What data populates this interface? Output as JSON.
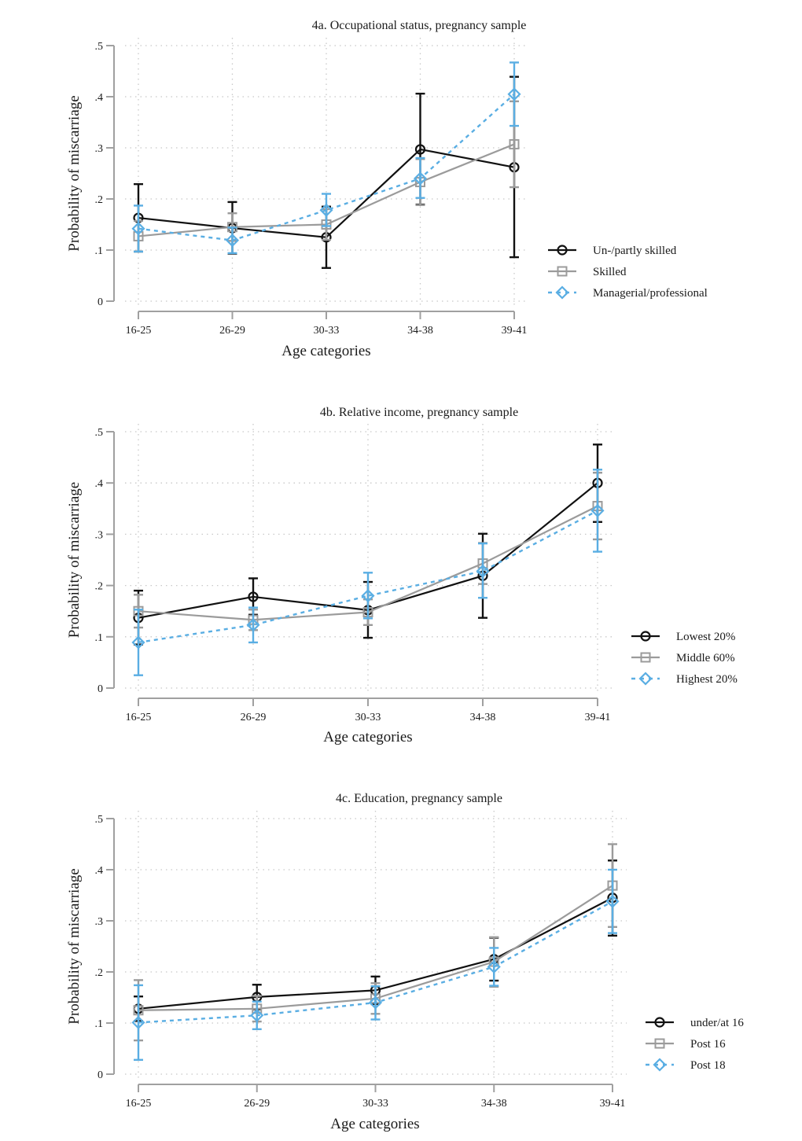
{
  "figure": {
    "panels": [
      {
        "title": "4a. Occupational status, pregnancy sample",
        "xlabel": "Age categories",
        "ylabel": "Probability of miscarriage"
      },
      {
        "title": "4b. Relative income, pregnancy sample",
        "xlabel": "Age categories",
        "ylabel": "Probability of miscarriage"
      },
      {
        "title": "4c. Education, pregnancy sample",
        "xlabel": "Age categories",
        "ylabel": "Probability of miscarriage"
      }
    ]
  },
  "colors": {
    "black": "#111111",
    "gray": "#9b9b9b",
    "blue": "#5aaee3",
    "axis": "#a0a0a0",
    "grid": "#c8c8c8"
  },
  "chart_data": [
    {
      "type": "line",
      "title": "4a. Occupational status, pregnancy sample",
      "xlabel": "Age categories",
      "ylabel": "Probability of miscarriage",
      "categories": [
        "16-25",
        "26-29",
        "30-33",
        "34-38",
        "39-41"
      ],
      "yticks": [
        "0",
        ".1",
        ".2",
        ".3",
        ".4",
        ".5"
      ],
      "ylim": [
        0,
        0.5
      ],
      "grid": true,
      "legend": "right",
      "series": [
        {
          "name": "Un-/partly skilled",
          "style": "black-circle-solid",
          "values": [
            0.163,
            0.143,
            0.125,
            0.297,
            0.262
          ],
          "ci_low": [
            0.097,
            0.093,
            0.065,
            0.189,
            0.086
          ],
          "ci_high": [
            0.229,
            0.194,
            0.185,
            0.406,
            0.439
          ]
        },
        {
          "name": "Skilled",
          "style": "gray-square-solid",
          "values": [
            0.127,
            0.145,
            0.15,
            0.233,
            0.307
          ],
          "ci_low": [
            0.097,
            0.118,
            0.12,
            0.188,
            0.223
          ],
          "ci_high": [
            0.157,
            0.172,
            0.18,
            0.278,
            0.391
          ]
        },
        {
          "name": "Managerial/professional",
          "style": "blue-diamond-dashed",
          "values": [
            0.142,
            0.119,
            0.178,
            0.24,
            0.405
          ],
          "ci_low": [
            0.097,
            0.094,
            0.147,
            0.202,
            0.343
          ],
          "ci_high": [
            0.187,
            0.144,
            0.21,
            0.28,
            0.467
          ]
        }
      ]
    },
    {
      "type": "line",
      "title": "4b. Relative income, pregnancy sample",
      "xlabel": "Age categories",
      "ylabel": "Probability of miscarriage",
      "categories": [
        "16-25",
        "26-29",
        "30-33",
        "34-38",
        "39-41"
      ],
      "yticks": [
        "0",
        ".1",
        ".2",
        ".3",
        ".4",
        ".5"
      ],
      "ylim": [
        0,
        0.5
      ],
      "grid": true,
      "legend": "right",
      "series": [
        {
          "name": "Lowest 20%",
          "style": "black-circle-solid",
          "values": [
            0.137,
            0.178,
            0.152,
            0.219,
            0.4
          ],
          "ci_low": [
            0.085,
            0.143,
            0.098,
            0.137,
            0.324
          ],
          "ci_high": [
            0.19,
            0.214,
            0.207,
            0.301,
            0.475
          ]
        },
        {
          "name": "Middle 60%",
          "style": "gray-square-solid",
          "values": [
            0.15,
            0.133,
            0.148,
            0.243,
            0.355
          ],
          "ci_low": [
            0.118,
            0.113,
            0.123,
            0.203,
            0.29
          ],
          "ci_high": [
            0.182,
            0.153,
            0.173,
            0.283,
            0.42
          ]
        },
        {
          "name": "Highest 20%",
          "style": "blue-diamond-dashed",
          "values": [
            0.089,
            0.123,
            0.18,
            0.228,
            0.346
          ],
          "ci_low": [
            0.025,
            0.089,
            0.136,
            0.176,
            0.266
          ],
          "ci_high": [
            0.153,
            0.157,
            0.225,
            0.282,
            0.426
          ]
        }
      ]
    },
    {
      "type": "line",
      "title": "4c. Education, pregnancy sample",
      "xlabel": "Age categories",
      "ylabel": "Probability of miscarriage",
      "categories": [
        "16-25",
        "26-29",
        "30-33",
        "34-38",
        "39-41"
      ],
      "yticks": [
        "0",
        ".1",
        ".2",
        ".3",
        ".4",
        ".5"
      ],
      "ylim": [
        0,
        0.5
      ],
      "grid": true,
      "legend": "right",
      "series": [
        {
          "name": "under/at 16",
          "style": "black-circle-solid",
          "values": [
            0.128,
            0.151,
            0.164,
            0.225,
            0.345
          ],
          "ci_low": [
            0.104,
            0.127,
            0.137,
            0.183,
            0.271
          ],
          "ci_high": [
            0.152,
            0.175,
            0.191,
            0.267,
            0.418
          ]
        },
        {
          "name": "Post 16",
          "style": "gray-square-solid",
          "values": [
            0.125,
            0.128,
            0.148,
            0.22,
            0.369
          ],
          "ci_low": [
            0.066,
            0.103,
            0.118,
            0.171,
            0.288
          ],
          "ci_high": [
            0.184,
            0.153,
            0.178,
            0.268,
            0.45
          ]
        },
        {
          "name": "Post 18",
          "style": "blue-diamond-dashed",
          "values": [
            0.101,
            0.115,
            0.14,
            0.21,
            0.338
          ],
          "ci_low": [
            0.028,
            0.088,
            0.107,
            0.173,
            0.276
          ],
          "ci_high": [
            0.174,
            0.142,
            0.172,
            0.247,
            0.4
          ]
        }
      ]
    }
  ]
}
